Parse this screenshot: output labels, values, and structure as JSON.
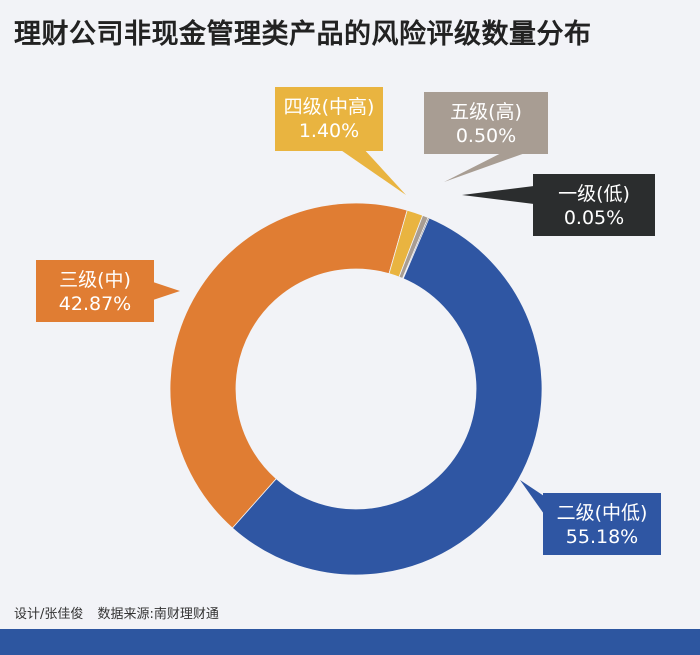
{
  "title": "理财公司非现金管理类产品的风险评级数量分布",
  "credit": {
    "designer": "设计/张佳俊",
    "source": "数据来源:南财理财通"
  },
  "chart_data": {
    "type": "pie",
    "donut": true,
    "legend": "none",
    "unit": "%",
    "slices": [
      {
        "label": "二级(中低)",
        "value": 55.18,
        "display": "55.18%",
        "color": "#2f56a3"
      },
      {
        "label": "三级(中)",
        "value": 42.87,
        "display": "42.87%",
        "color": "#e07d33"
      },
      {
        "label": "四级(中高)",
        "value": 1.4,
        "display": "1.40%",
        "color": "#e9b440"
      },
      {
        "label": "五级(高)",
        "value": 0.5,
        "display": "0.50%",
        "color": "#a89d93"
      },
      {
        "label": "一级(低)",
        "value": 0.05,
        "display": "0.05%",
        "color": "#2b2d2e"
      }
    ]
  }
}
